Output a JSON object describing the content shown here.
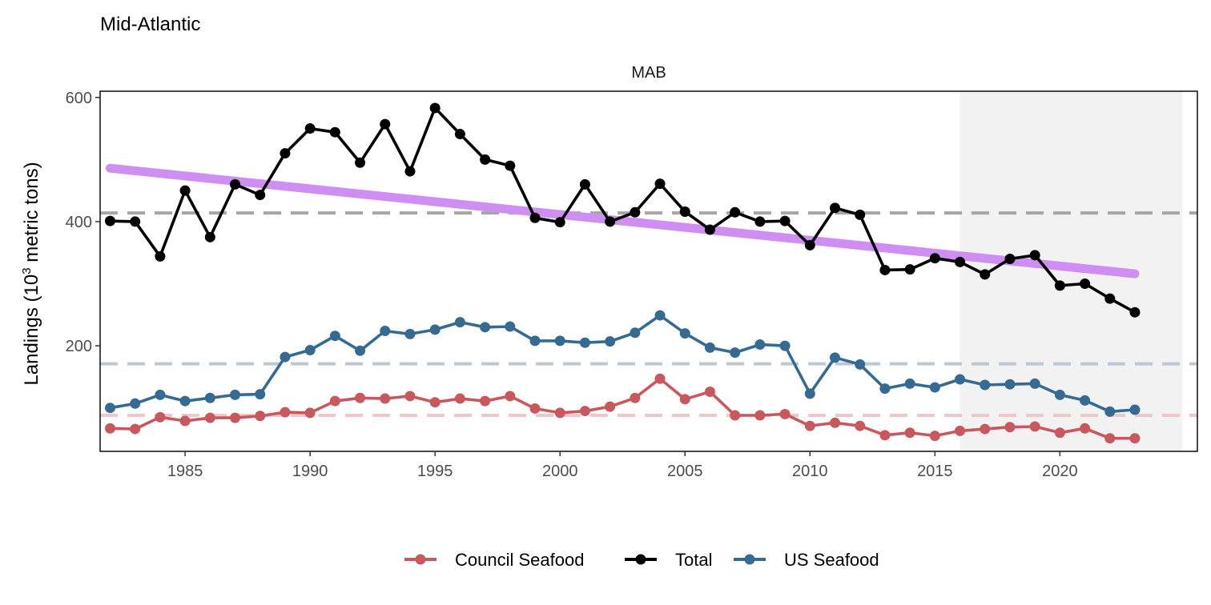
{
  "page": {
    "title": "Mid-Atlantic",
    "panel_label": "MAB"
  },
  "chart_data": {
    "type": "line",
    "ylabel_main": "Landings (10",
    "ylabel_sup": "3",
    "ylabel_tail": " metric tons)",
    "xlim": [
      1981.6,
      2025.5
    ],
    "ylim": [
      30,
      610
    ],
    "xticks": [
      1985,
      1990,
      1995,
      2000,
      2005,
      2010,
      2015,
      2020
    ],
    "yticks": [
      200,
      400,
      600
    ],
    "shaded_region": [
      2016,
      2024.9
    ],
    "x": [
      1982,
      1983,
      1984,
      1985,
      1986,
      1987,
      1988,
      1989,
      1990,
      1991,
      1992,
      1993,
      1994,
      1995,
      1996,
      1997,
      1998,
      1999,
      2000,
      2001,
      2002,
      2003,
      2004,
      2005,
      2006,
      2007,
      2008,
      2009,
      2010,
      2011,
      2012,
      2013,
      2014,
      2015,
      2016,
      2017,
      2018,
      2019,
      2020,
      2021,
      2022,
      2023
    ],
    "series": [
      {
        "name": "Council Seafood",
        "color": "#c9585e",
        "mean_color": "#efc7c9",
        "mean": 88,
        "values": [
          67,
          66,
          85,
          79,
          84,
          84,
          87,
          93,
          92,
          111,
          116,
          115,
          119,
          109,
          115,
          111,
          119,
          99,
          92,
          95,
          102,
          116,
          147,
          114,
          126,
          88,
          88,
          90,
          71,
          76,
          71,
          56,
          60,
          55,
          63,
          66,
          69,
          70,
          60,
          67,
          51,
          51
        ]
      },
      {
        "name": "Total",
        "color": "#000000",
        "mean_color": "#a6a6a6",
        "mean": 414,
        "values": [
          401,
          400,
          344,
          450,
          375,
          460,
          443,
          510,
          550,
          544,
          495,
          557,
          481,
          583,
          541,
          500,
          490,
          406,
          399,
          460,
          400,
          415,
          461,
          416,
          387,
          415,
          400,
          401,
          362,
          422,
          411,
          322,
          323,
          341,
          335,
          315,
          340,
          346,
          297,
          300,
          276,
          254
        ]
      },
      {
        "name": "US Seafood",
        "color": "#356a93",
        "mean_color": "#b9c9d8",
        "mean": 171,
        "values": [
          100,
          107,
          121,
          111,
          116,
          121,
          122,
          182,
          193,
          216,
          192,
          224,
          219,
          226,
          238,
          230,
          231,
          208,
          208,
          205,
          207,
          221,
          249,
          220,
          197,
          189,
          202,
          200,
          123,
          181,
          170,
          131,
          139,
          133,
          146,
          137,
          138,
          139,
          121,
          112,
          94,
          97
        ]
      }
    ],
    "trend": {
      "color": "#cf8ef2",
      "x": [
        1982,
        2023
      ],
      "values": [
        486,
        316
      ]
    }
  },
  "legend": {
    "items": [
      {
        "label": "Council Seafood",
        "color": "#c9585e"
      },
      {
        "label": "Total",
        "color": "#000000"
      },
      {
        "label": "US Seafood",
        "color": "#356a93"
      }
    ]
  }
}
